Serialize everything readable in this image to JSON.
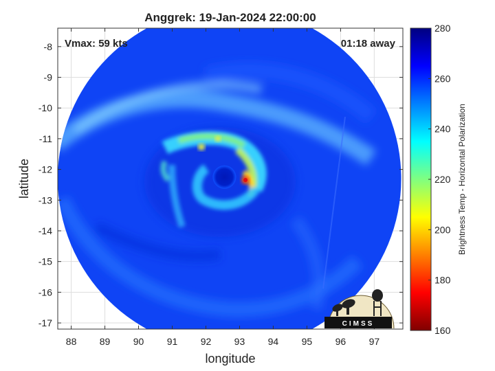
{
  "chart_data": {
    "type": "heatmap",
    "title": "Anggrek: 19-Jan-2024 22:00:00",
    "xlabel": "longitude",
    "ylabel": "latitude",
    "xlim": [
      87.6,
      97.85
    ],
    "ylim": [
      -17.2,
      -7.4
    ],
    "xticks": [
      88,
      89,
      90,
      91,
      92,
      93,
      94,
      95,
      96,
      97
    ],
    "yticks": [
      -8,
      -9,
      -10,
      -11,
      -12,
      -13,
      -14,
      -15,
      -16,
      -17
    ],
    "grid": true,
    "annotations": {
      "vmax": "Vmax: 59 kts",
      "time_away": "01:18 away"
    },
    "colorbar": {
      "label": "Brightness Temp - Horizontal Polarization",
      "min": 160,
      "max": 280,
      "ticks": [
        160,
        180,
        200,
        220,
        240,
        260,
        280
      ],
      "colormap": [
        "#800000",
        "#ff0000",
        "#ff8000",
        "#ffff00",
        "#80ff80",
        "#00ffff",
        "#0080ff",
        "#0000ff",
        "#000080"
      ]
    },
    "swath": {
      "center_lon": 92.7,
      "center_lat": -12.3,
      "radius_deg": 5.1
    },
    "storm": {
      "eye_lon": 92.55,
      "eye_lat": -12.25,
      "eye_temp": 268,
      "eyewall_min_temp": 205,
      "peak_lon": 93.15,
      "peak_lat": -12.2,
      "peak_temp": 188
    },
    "logo_text": "CIMSS"
  }
}
